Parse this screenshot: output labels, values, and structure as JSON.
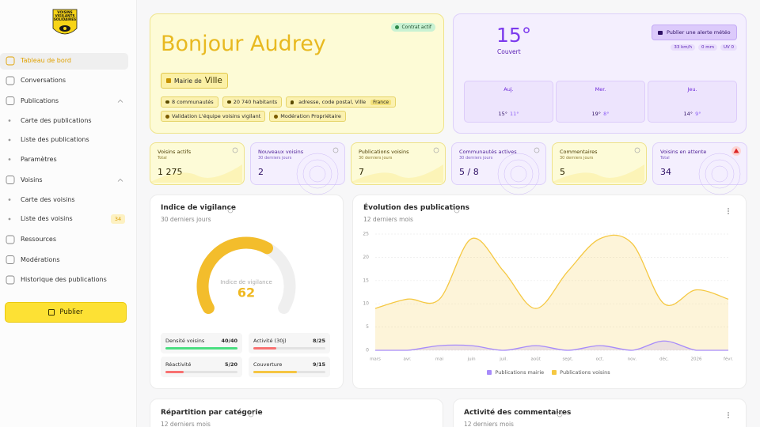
{
  "logo": [
    "VOISINS",
    "VIGILANTS",
    "SOLIDAIRES"
  ],
  "menu": [
    {
      "label": "Tableau de bord",
      "active": true
    },
    {
      "label": "Conversations"
    },
    {
      "label": "Publications",
      "expanded": true,
      "children": [
        {
          "label": "Carte des publications"
        },
        {
          "label": "Liste des publications"
        },
        {
          "label": "Paramètres"
        }
      ]
    },
    {
      "label": "Voisins",
      "expanded": true,
      "children": [
        {
          "label": "Carte des voisins"
        },
        {
          "label": "Liste des voisins",
          "badge": 34
        }
      ]
    },
    {
      "label": "Ressources"
    },
    {
      "label": "Modérations"
    },
    {
      "label": "Historique des publications"
    }
  ],
  "publish_button": "Publier",
  "hero": {
    "greeting": "Bonjour Audrey",
    "status": "Contrat actif",
    "mairie_prefix": "Mairie de",
    "mairie_name": "Ville",
    "stats": [
      "8 communautés",
      "20 740 habitants"
    ],
    "address": "adresse, code postal, Ville",
    "country": "France",
    "roles": [
      "Validation L'équipe voisins vigilant",
      "Modération Propriétaire"
    ]
  },
  "weather": {
    "temperature": "15°",
    "condition": "Couvert",
    "alert_button": "Publier une alerte météo",
    "metrics": [
      "33 km/h",
      "0 mm",
      "UV 0"
    ],
    "days": [
      {
        "day": "Auj.",
        "high": "15°",
        "low": "11°"
      },
      {
        "day": "Mer.",
        "high": "19°",
        "low": "8°"
      },
      {
        "day": "Jeu.",
        "high": "14°",
        "low": "9°"
      }
    ]
  },
  "kpis": [
    {
      "title": "Voisins actifs",
      "period": "Total",
      "value": "1 275"
    },
    {
      "title": "Nouveaux voisins",
      "period": "30 derniers jours",
      "value": "2"
    },
    {
      "title": "Publications voisins",
      "period": "30 derniers jours",
      "value": "7"
    },
    {
      "title": "Communautés actives",
      "period": "30 derniers jours",
      "value": "5 / 8"
    },
    {
      "title": "Commentaires",
      "period": "30 derniers jours",
      "value": "5"
    },
    {
      "title": "Voisins en attente",
      "period": "Total",
      "value": "34"
    }
  ],
  "vigilance": {
    "title": "Indice de vigilance",
    "period": "30 derniers jours",
    "gauge_label": "Indice de vigilance",
    "score": 62,
    "gauge_range": [
      0,
      100
    ],
    "metrics": [
      {
        "label": "Densité voisins",
        "score": "40/40",
        "value": 40,
        "max": 40,
        "color": "#4ade80"
      },
      {
        "label": "Activité (30j)",
        "score": "8/25",
        "value": 8,
        "max": 25,
        "color": "#f87171"
      },
      {
        "label": "Réactivité",
        "score": "5/20",
        "value": 5,
        "max": 20,
        "color": "#f87171"
      },
      {
        "label": "Couverture",
        "score": "9/15",
        "value": 9,
        "max": 15,
        "color": "#f5c542"
      }
    ]
  },
  "chart_data": {
    "type": "area",
    "title": "Évolution des publications",
    "subtitle": "12 derniers mois",
    "categories": [
      "mars",
      "avr.",
      "mai",
      "juin",
      "juil.",
      "août",
      "sept.",
      "oct.",
      "nov.",
      "déc.",
      "2026",
      "févr."
    ],
    "series": [
      {
        "name": "Publications mairie",
        "color": "#a78bfa",
        "values": [
          0,
          0,
          1,
          1,
          0,
          1,
          0,
          1,
          0,
          2,
          0,
          0
        ]
      },
      {
        "name": "Publications voisins",
        "color": "#f5c842",
        "values": [
          9,
          11,
          11,
          24,
          17,
          9,
          17,
          24,
          23,
          10,
          13,
          11
        ]
      }
    ],
    "ylim": [
      0,
      25
    ],
    "yticks": [
      0,
      5,
      10,
      15,
      20,
      25
    ],
    "grid": true,
    "legend": "bottom"
  },
  "bottom_cards": [
    {
      "title": "Répartition par catégorie",
      "period": "12 derniers mois"
    },
    {
      "title": "Activité des commentaires",
      "period": "12 derniers mois"
    }
  ]
}
